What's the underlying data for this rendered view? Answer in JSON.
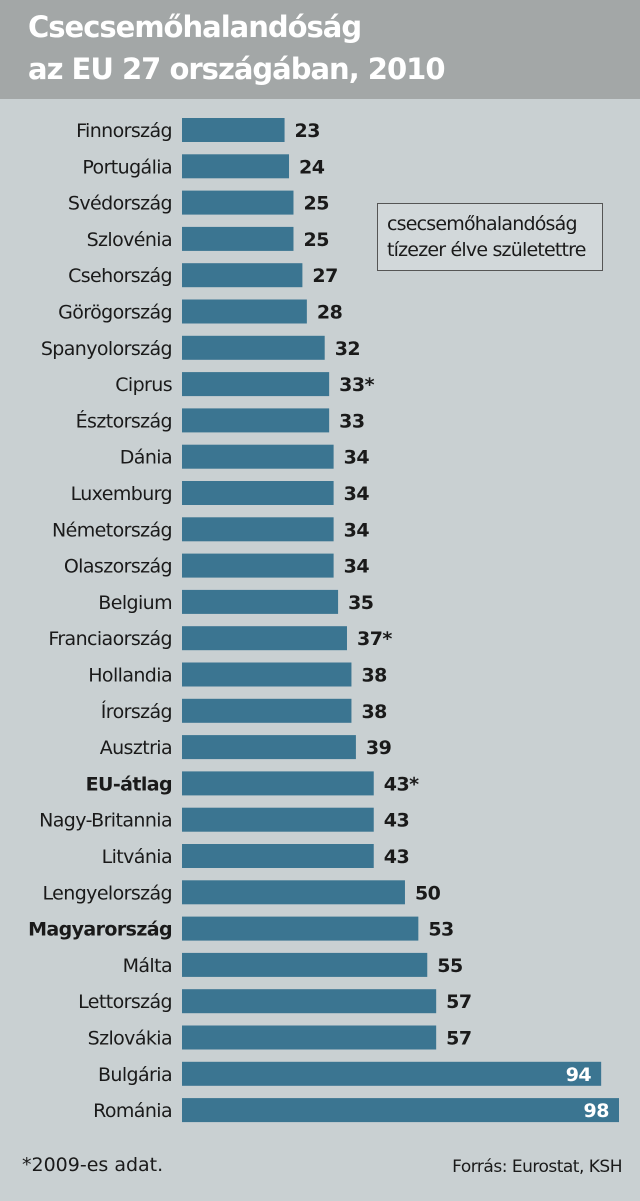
{
  "colors": {
    "bar": "#3b7591",
    "header_bg": "#a3a7a7",
    "body_bg": "#c9d0d2"
  },
  "chart_data": {
    "type": "bar",
    "orientation": "horizontal",
    "title_line1": "Csecsemőhalandóság",
    "title_line2": "az EU 27 országában, 2010",
    "legend_line1": "csecsemőhalandóság",
    "legend_line2": "tízezer élve születettre",
    "footnote": "*2009-es adat.",
    "source": "Forrás: Eurostat, KSH",
    "xlim": [
      0,
      100
    ],
    "categories": [
      "Finnország",
      "Portugália",
      "Svédország",
      "Szlovénia",
      "Csehország",
      "Görögország",
      "Spanyolország",
      "Ciprus",
      "Észtország",
      "Dánia",
      "Luxemburg",
      "Németország",
      "Olaszország",
      "Belgium",
      "Franciaország",
      "Hollandia",
      "Írország",
      "Ausztria",
      "EU-átlag",
      "Nagy-Britannia",
      "Litvánia",
      "Lengyelország",
      "Magyarország",
      "Málta",
      "Lettország",
      "Szlovákia",
      "Bulgária",
      "Románia"
    ],
    "values": [
      23,
      24,
      25,
      25,
      27,
      28,
      32,
      33,
      33,
      34,
      34,
      34,
      34,
      35,
      37,
      38,
      38,
      39,
      43,
      43,
      43,
      50,
      53,
      55,
      57,
      57,
      94,
      98
    ],
    "value_labels": [
      "23",
      "24",
      "25",
      "25",
      "27",
      "28",
      "32",
      "33*",
      "33",
      "34",
      "34",
      "34",
      "34",
      "35",
      "37*",
      "38",
      "38",
      "39",
      "43*",
      "43",
      "43",
      "50",
      "53",
      "55",
      "57",
      "57",
      "94",
      "98"
    ],
    "bold_categories": [
      "EU-átlag",
      "Magyarország"
    ],
    "inside_label_categories": [
      "Bulgária",
      "Románia"
    ]
  }
}
